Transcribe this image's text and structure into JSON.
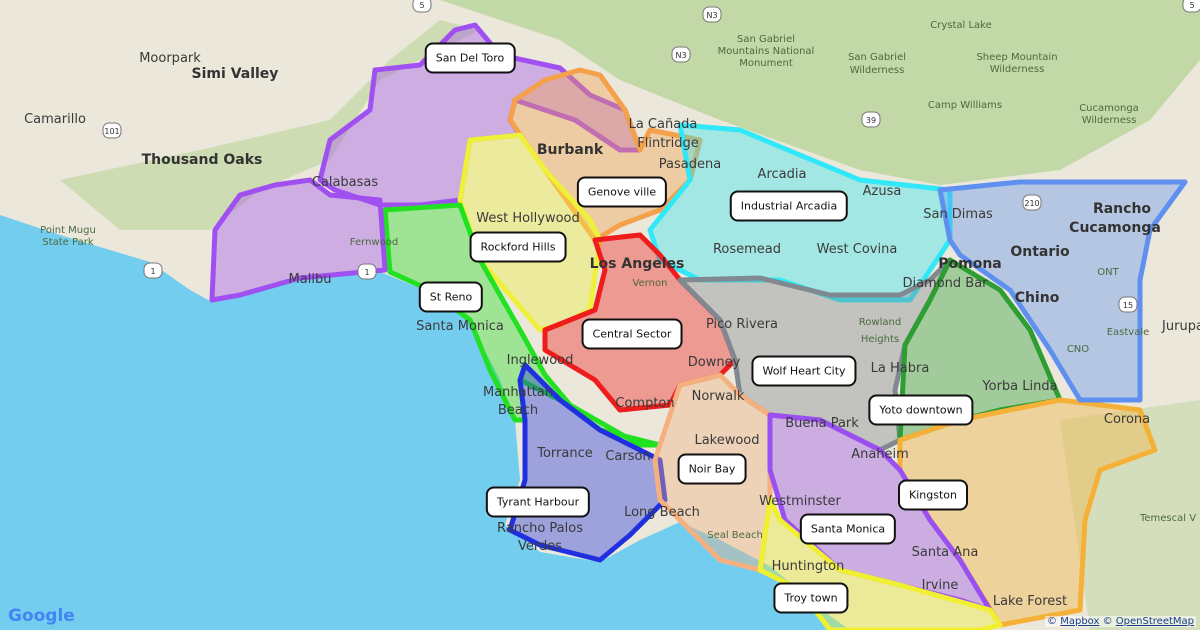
{
  "map": {
    "colors": {
      "land": "#ebe7da",
      "hills": "#b9d49a",
      "ocean": "#73cdee"
    },
    "places": [
      {
        "name": "Moorpark",
        "size": "mid"
      },
      {
        "name": "Simi Valley",
        "size": "big"
      },
      {
        "name": "Camarillo",
        "size": "mid"
      },
      {
        "name": "Thousand Oaks",
        "size": "big"
      },
      {
        "name": "Point Mugu",
        "size": "small"
      },
      {
        "name": "State Park",
        "size": "small"
      },
      {
        "name": "Calabasas",
        "size": "mid"
      },
      {
        "name": "Fernwood",
        "size": "small"
      },
      {
        "name": "Malibu",
        "size": "mid"
      },
      {
        "name": "Burbank",
        "size": "big"
      },
      {
        "name": "La Cañada",
        "size": "mid"
      },
      {
        "name": "Flintridge",
        "size": "mid"
      },
      {
        "name": "Pasadena",
        "size": "mid"
      },
      {
        "name": "West Hollywood",
        "size": "mid"
      },
      {
        "name": "Los Angeles",
        "size": "big"
      },
      {
        "name": "Santa Monica",
        "size": "mid"
      },
      {
        "name": "Vernon",
        "size": "small"
      },
      {
        "name": "Inglewood",
        "size": "mid"
      },
      {
        "name": "Manhattan",
        "size": "mid"
      },
      {
        "name": "Beach",
        "size": "mid"
      },
      {
        "name": "Compton",
        "size": "mid"
      },
      {
        "name": "Downey",
        "size": "mid"
      },
      {
        "name": "Pico Rivera",
        "size": "mid"
      },
      {
        "name": "Norwalk",
        "size": "mid"
      },
      {
        "name": "Torrance",
        "size": "mid"
      },
      {
        "name": "Carson",
        "size": "mid"
      },
      {
        "name": "Lakewood",
        "size": "mid"
      },
      {
        "name": "Long Beach",
        "size": "mid"
      },
      {
        "name": "Seal Beach",
        "size": "small"
      },
      {
        "name": "Rancho Palos",
        "size": "mid"
      },
      {
        "name": "Verdes",
        "size": "mid"
      },
      {
        "name": "Huntington",
        "size": "mid"
      },
      {
        "name": "Westminster",
        "size": "mid"
      },
      {
        "name": "Santa Ana",
        "size": "mid"
      },
      {
        "name": "Irvine",
        "size": "mid"
      },
      {
        "name": "Lake Forest",
        "size": "mid"
      },
      {
        "name": "Buena Park",
        "size": "mid"
      },
      {
        "name": "Anaheim",
        "size": "mid"
      },
      {
        "name": "La Habra",
        "size": "mid"
      },
      {
        "name": "Rowland",
        "size": "small"
      },
      {
        "name": "Heights",
        "size": "small"
      },
      {
        "name": "Yorba Linda",
        "size": "mid"
      },
      {
        "name": "Corona",
        "size": "mid"
      },
      {
        "name": "Temescal V",
        "size": "small"
      },
      {
        "name": "Eastvale",
        "size": "small"
      },
      {
        "name": "Jurupa",
        "size": "mid"
      },
      {
        "name": "CNO",
        "size": "small"
      },
      {
        "name": "ONT",
        "size": "small"
      },
      {
        "name": "Chino",
        "size": "big"
      },
      {
        "name": "Ontario",
        "size": "big"
      },
      {
        "name": "Rancho",
        "size": "big"
      },
      {
        "name": "Cucamonga",
        "size": "big"
      },
      {
        "name": "Pomona",
        "size": "big"
      },
      {
        "name": "San Dimas",
        "size": "mid"
      },
      {
        "name": "Diamond Bar",
        "size": "mid"
      },
      {
        "name": "Azusa",
        "size": "mid"
      },
      {
        "name": "Arcadia",
        "size": "mid"
      },
      {
        "name": "Rosemead",
        "size": "mid"
      },
      {
        "name": "West Covina",
        "size": "mid"
      },
      {
        "name": "Crystal Lake",
        "size": "small"
      },
      {
        "name": "San Gabriel",
        "size": "small"
      },
      {
        "name": "Mountains National",
        "size": "small"
      },
      {
        "name": "Monument",
        "size": "small"
      },
      {
        "name": "San Gabriel",
        "size": "small"
      },
      {
        "name": "Wilderness",
        "size": "small"
      },
      {
        "name": "Sheep Mountain",
        "size": "small"
      },
      {
        "name": "Wilderness",
        "size": "small"
      },
      {
        "name": "Camp Williams",
        "size": "small"
      },
      {
        "name": "Cucamonga",
        "size": "small"
      },
      {
        "name": "Wilderness",
        "size": "small"
      }
    ],
    "shields": [
      "101",
      "1",
      "1",
      "N3",
      "N3",
      "39",
      "210",
      "5",
      "15",
      "5"
    ],
    "regions": [
      {
        "label": "San Del Toro",
        "color": "#a050f0"
      },
      {
        "label": "Genove ville",
        "color": "#f5a04a"
      },
      {
        "label": "Industrial Arcadia",
        "color": "#30e8f8"
      },
      {
        "label": "Rockford Hills",
        "color": "#eef03a"
      },
      {
        "label": "St Reno",
        "color": "#22e022"
      },
      {
        "label": "Central Sector",
        "color": "#ee1c1c"
      },
      {
        "label": "Wolf Heart City",
        "color": "#808890"
      },
      {
        "label": "Yoto downtown",
        "color": "#2e9e34"
      },
      {
        "label": "Tyrant Harbour",
        "color": "#2030e0"
      },
      {
        "label": "Noir Bay",
        "color": "#f5b080"
      },
      {
        "label": "Kingston",
        "color": "#f5b038"
      },
      {
        "label": "Santa Monica",
        "color": "#9a50f0"
      },
      {
        "label": "Troy town",
        "color": "#f0f030"
      },
      {
        "label": "",
        "color": "#a050f0"
      },
      {
        "label": "",
        "color": "#5f90f0"
      }
    ]
  },
  "attribution": {
    "prefix": "©",
    "mapbox": "Mapbox",
    "sep": "©",
    "osm": "OpenStreetMap"
  },
  "google_logo": "Google"
}
